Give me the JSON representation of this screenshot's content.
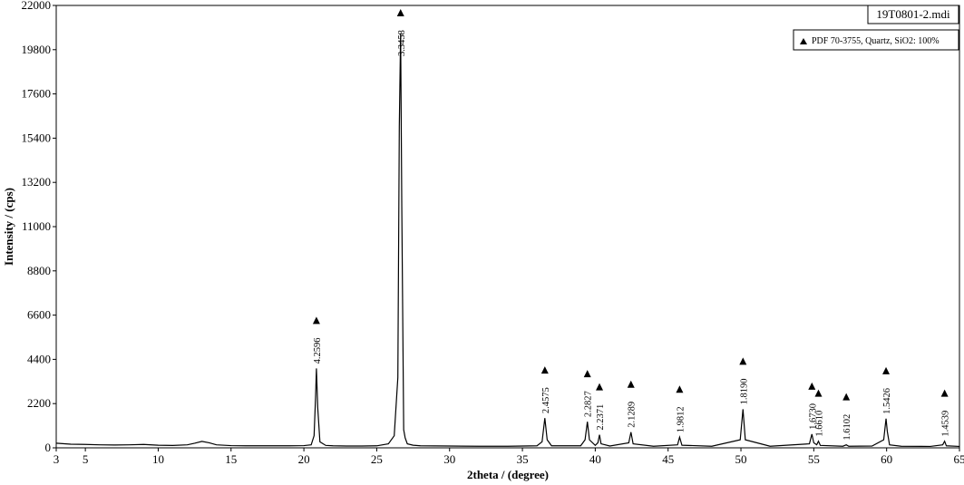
{
  "chart_data": {
    "type": "line",
    "xlabel": "2theta / (degree)",
    "ylabel": "Intensity / (cps)",
    "xlim": [
      3,
      65
    ],
    "xticks": [
      3,
      5,
      10,
      15,
      20,
      25,
      30,
      35,
      40,
      45,
      50,
      55,
      60,
      65
    ],
    "ylim": [
      0,
      22000
    ],
    "yticks": [
      0,
      2200,
      4400,
      6600,
      8800,
      11000,
      13200,
      15400,
      17600,
      19800,
      22000
    ],
    "series": [
      {
        "name": "19T0801-2.mdi",
        "color": "#000000",
        "x": [
          3,
          4,
          5,
          6,
          7,
          8,
          9,
          10,
          11,
          12,
          12.5,
          13,
          13.5,
          14,
          15,
          16,
          17,
          18,
          19,
          20,
          20.5,
          20.7,
          20.8,
          20.86,
          20.95,
          21.1,
          21.5,
          22,
          23,
          24,
          25,
          25.8,
          26.2,
          26.45,
          26.55,
          26.64,
          26.72,
          26.85,
          26.95,
          27.1,
          27.5,
          28,
          30,
          32,
          34,
          36,
          36.35,
          36.54,
          36.7,
          37,
          39,
          39.3,
          39.46,
          39.6,
          40,
          40.18,
          40.29,
          40.4,
          41,
          42.3,
          42.45,
          42.6,
          44,
          45.65,
          45.79,
          45.95,
          48,
          49.95,
          50.14,
          50.3,
          52,
          54.7,
          54.87,
          55.0,
          55.2,
          55.32,
          55.45,
          57,
          57.23,
          57.4,
          59,
          59.8,
          59.96,
          60.05,
          60.2,
          61,
          63,
          63.85,
          63.98,
          64.1,
          65
        ],
        "values": [
          230,
          180,
          170,
          150,
          140,
          150,
          170,
          130,
          120,
          150,
          230,
          320,
          250,
          150,
          110,
          100,
          100,
          100,
          100,
          110,
          150,
          600,
          2500,
          3950,
          2000,
          300,
          120,
          100,
          90,
          90,
          100,
          200,
          600,
          3500,
          16000,
          20600,
          12000,
          900,
          500,
          200,
          130,
          100,
          90,
          80,
          80,
          100,
          300,
          1480,
          400,
          100,
          100,
          400,
          1300,
          400,
          120,
          250,
          650,
          200,
          90,
          250,
          780,
          200,
          80,
          150,
          530,
          130,
          80,
          400,
          1920,
          400,
          80,
          200,
          680,
          250,
          150,
          330,
          120,
          80,
          150,
          80,
          90,
          400,
          1450,
          800,
          150,
          80,
          70,
          150,
          330,
          100,
          70
        ]
      }
    ],
    "reference": {
      "name": "PDF 70-3755, Quartz, SiO2: 100%",
      "peaks": [
        {
          "x": 20.86,
          "label": "4.2596"
        },
        {
          "x": 26.64,
          "label": "3.3458"
        },
        {
          "x": 36.54,
          "label": "2.4575"
        },
        {
          "x": 39.46,
          "label": "2.2827"
        },
        {
          "x": 40.29,
          "label": "2.2371"
        },
        {
          "x": 42.45,
          "label": "2.1289"
        },
        {
          "x": 45.79,
          "label": "1.9812"
        },
        {
          "x": 50.14,
          "label": "1.8190"
        },
        {
          "x": 54.87,
          "label": "1.6730"
        },
        {
          "x": 55.32,
          "label": "1.6610"
        },
        {
          "x": 57.23,
          "label": "1.6102"
        },
        {
          "x": 59.96,
          "label": "1.5426"
        },
        {
          "x": 63.98,
          "label": "1.4539"
        }
      ]
    }
  }
}
